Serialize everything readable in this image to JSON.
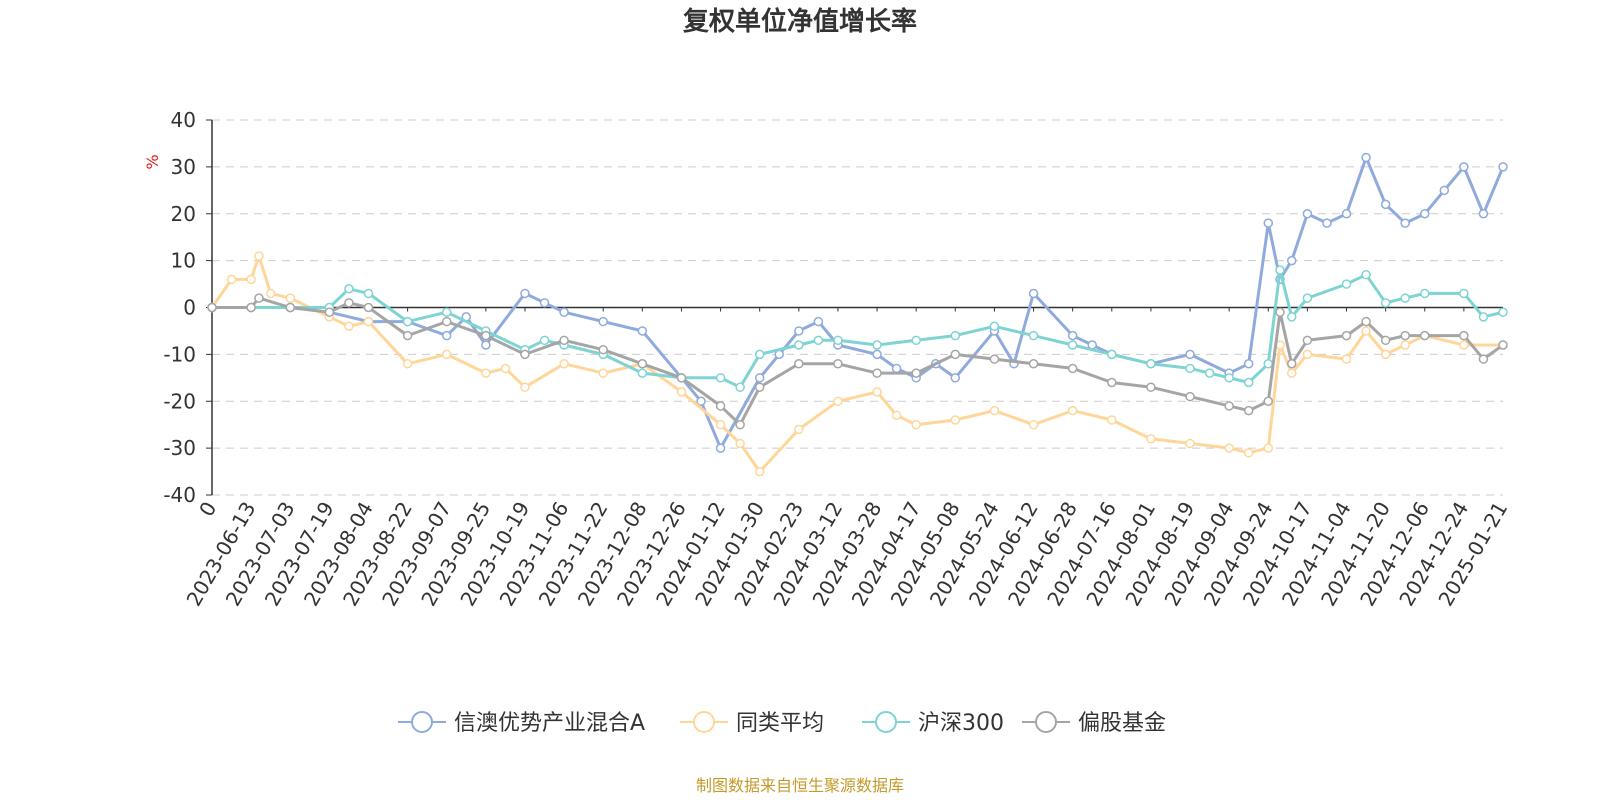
{
  "chart_data": {
    "type": "line",
    "title": "复权单位净值增长率",
    "ylabel": "%",
    "ylim": [
      -40,
      40
    ],
    "yticks": [
      40,
      30,
      20,
      10,
      0,
      -10,
      -20,
      -30,
      -40
    ],
    "xticks": [
      "0",
      "2023-06-13",
      "2023-07-03",
      "2023-07-19",
      "2023-08-04",
      "2023-08-22",
      "2023-09-07",
      "2023-09-25",
      "2023-10-19",
      "2023-11-06",
      "2023-11-22",
      "2023-12-08",
      "2023-12-26",
      "2024-01-12",
      "2024-01-30",
      "2024-02-23",
      "2024-03-12",
      "2024-03-28",
      "2024-04-17",
      "2024-05-08",
      "2024-05-24",
      "2024-06-12",
      "2024-06-28",
      "2024-07-16",
      "2024-08-01",
      "2024-08-19",
      "2024-09-04",
      "2024-09-24",
      "2024-10-17",
      "2024-11-04",
      "2024-11-20",
      "2024-12-06",
      "2024-12-24",
      "2025-01-21"
    ],
    "grid": true,
    "legend_position": "bottom",
    "source": "制图数据来自恒生聚源数据库",
    "series": [
      {
        "name": "信澳优势产业混合A",
        "color": "#8faadc",
        "x": [
          0,
          1,
          2,
          3,
          4,
          5,
          6,
          6.5,
          7,
          8,
          8.5,
          9,
          10,
          11,
          12,
          12.5,
          13,
          14,
          14.5,
          15,
          15.5,
          16,
          17,
          17.5,
          18,
          18.5,
          19,
          20,
          20.5,
          21,
          22,
          22.5,
          23,
          24,
          25,
          26,
          26.5,
          27,
          27.3,
          27.6,
          28,
          28.5,
          29,
          29.5,
          30,
          30.5,
          31,
          31.5,
          32,
          32.5,
          33
        ],
        "values": [
          0,
          0,
          0,
          -1,
          -3,
          -3,
          -6,
          -2,
          -8,
          3,
          1,
          -1,
          -3,
          -5,
          -15,
          -20,
          -30,
          -15,
          -10,
          -5,
          -3,
          -8,
          -10,
          -13,
          -15,
          -12,
          -15,
          -5,
          -12,
          3,
          -6,
          -8,
          -10,
          -12,
          -10,
          -14,
          -12,
          18,
          6,
          10,
          20,
          18,
          20,
          32,
          22,
          18,
          20,
          25,
          30,
          20,
          30
        ]
      },
      {
        "name": "同类平均",
        "color": "#ffd699",
        "x": [
          0,
          0.5,
          1,
          1.2,
          1.5,
          2,
          3,
          3.5,
          4,
          5,
          6,
          7,
          7.5,
          8,
          9,
          10,
          11,
          12,
          13,
          13.5,
          14,
          15,
          16,
          17,
          17.5,
          18,
          19,
          20,
          21,
          22,
          23,
          24,
          25,
          26,
          26.5,
          27,
          27.3,
          27.6,
          28,
          29,
          29.5,
          30,
          30.5,
          31,
          32,
          33
        ],
        "values": [
          0,
          6,
          6,
          11,
          3,
          2,
          -2,
          -4,
          -3,
          -12,
          -10,
          -14,
          -13,
          -17,
          -12,
          -14,
          -12,
          -18,
          -25,
          -29,
          -35,
          -26,
          -20,
          -18,
          -23,
          -25,
          -24,
          -22,
          -25,
          -22,
          -24,
          -28,
          -29,
          -30,
          -31,
          -30,
          -8,
          -14,
          -10,
          -11,
          -5,
          -10,
          -8,
          -6,
          -8,
          -8
        ]
      },
      {
        "name": "沪深300",
        "color": "#7ed3d3",
        "x": [
          0,
          1,
          2,
          3,
          3.5,
          4,
          5,
          6,
          7,
          8,
          8.5,
          9,
          10,
          11,
          12,
          13,
          13.5,
          14,
          15,
          15.5,
          16,
          17,
          18,
          19,
          20,
          21,
          22,
          23,
          24,
          25,
          25.5,
          26,
          26.5,
          27,
          27.3,
          27.6,
          28,
          29,
          29.5,
          30,
          30.5,
          31,
          32,
          32.5,
          33
        ],
        "values": [
          0,
          0,
          0,
          0,
          4,
          3,
          -3,
          -1,
          -5,
          -9,
          -7,
          -8,
          -10,
          -14,
          -15,
          -15,
          -17,
          -10,
          -8,
          -7,
          -7,
          -8,
          -7,
          -6,
          -4,
          -6,
          -8,
          -10,
          -12,
          -13,
          -14,
          -15,
          -16,
          -12,
          8,
          -2,
          2,
          5,
          7,
          1,
          2,
          3,
          3,
          -2,
          -1
        ]
      },
      {
        "name": "偏股基金",
        "color": "#a5a5a5",
        "x": [
          0,
          1,
          1.2,
          2,
          3,
          3.5,
          4,
          5,
          6,
          7,
          8,
          9,
          10,
          11,
          12,
          13,
          13.5,
          14,
          15,
          16,
          17,
          18,
          19,
          20,
          21,
          22,
          23,
          24,
          25,
          26,
          26.5,
          27,
          27.3,
          27.6,
          28,
          29,
          29.5,
          30,
          30.5,
          31,
          32,
          32.5,
          33
        ],
        "values": [
          0,
          0,
          2,
          0,
          -1,
          1,
          0,
          -6,
          -3,
          -6,
          -10,
          -7,
          -9,
          -12,
          -15,
          -21,
          -25,
          -17,
          -12,
          -12,
          -14,
          -14,
          -10,
          -11,
          -12,
          -13,
          -16,
          -17,
          -19,
          -21,
          -22,
          -20,
          -1,
          -12,
          -7,
          -6,
          -3,
          -7,
          -6,
          -6,
          -6,
          -11,
          -8
        ]
      }
    ]
  }
}
